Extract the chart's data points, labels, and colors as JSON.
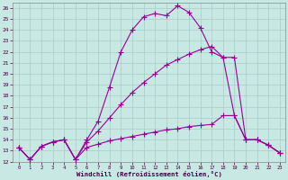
{
  "xlabel": "Windchill (Refroidissement éolien,°C)",
  "background_color": "#c8e8e4",
  "grid_color": "#a8ccca",
  "line_color": "#990099",
  "xlim_min": -0.5,
  "xlim_max": 23.5,
  "ylim_min": 12,
  "ylim_max": 26.5,
  "xticks": [
    0,
    1,
    2,
    3,
    4,
    5,
    6,
    7,
    8,
    9,
    10,
    11,
    12,
    13,
    14,
    15,
    16,
    17,
    18,
    19,
    20,
    21,
    22,
    23
  ],
  "yticks": [
    12,
    13,
    14,
    15,
    16,
    17,
    18,
    19,
    20,
    21,
    22,
    23,
    24,
    25,
    26
  ],
  "line1_x": [
    0,
    1,
    2,
    3,
    4,
    5,
    6,
    7,
    8,
    9,
    10,
    11,
    12,
    13,
    14,
    15,
    16,
    17,
    18,
    19,
    20,
    21,
    22,
    23
  ],
  "line1_y": [
    13.3,
    12.2,
    13.4,
    13.8,
    14.0,
    12.2,
    14.0,
    15.7,
    18.8,
    22.0,
    24.0,
    25.2,
    25.5,
    25.3,
    26.2,
    25.6,
    24.2,
    22.0,
    21.5,
    16.2,
    14.0,
    14.0,
    13.5,
    12.8
  ],
  "line2_x": [
    0,
    1,
    2,
    3,
    4,
    5,
    6,
    7,
    8,
    9,
    10,
    11,
    12,
    13,
    14,
    15,
    16,
    17,
    18,
    19,
    20,
    21,
    22,
    23
  ],
  "line2_y": [
    13.3,
    12.2,
    13.4,
    13.8,
    14.0,
    12.2,
    13.8,
    14.8,
    16.0,
    17.2,
    18.3,
    19.2,
    20.0,
    20.8,
    21.3,
    21.8,
    22.2,
    22.5,
    21.5,
    21.5,
    14.0,
    14.0,
    13.5,
    12.8
  ],
  "line3_x": [
    0,
    1,
    2,
    3,
    4,
    5,
    6,
    7,
    8,
    9,
    10,
    11,
    12,
    13,
    14,
    15,
    16,
    17,
    18,
    19,
    20,
    21,
    22,
    23
  ],
  "line3_y": [
    13.3,
    12.2,
    13.4,
    13.8,
    14.0,
    12.2,
    13.3,
    13.6,
    13.9,
    14.1,
    14.3,
    14.5,
    14.7,
    14.9,
    15.0,
    15.2,
    15.3,
    15.4,
    16.2,
    16.2,
    14.0,
    14.0,
    13.5,
    12.8
  ]
}
